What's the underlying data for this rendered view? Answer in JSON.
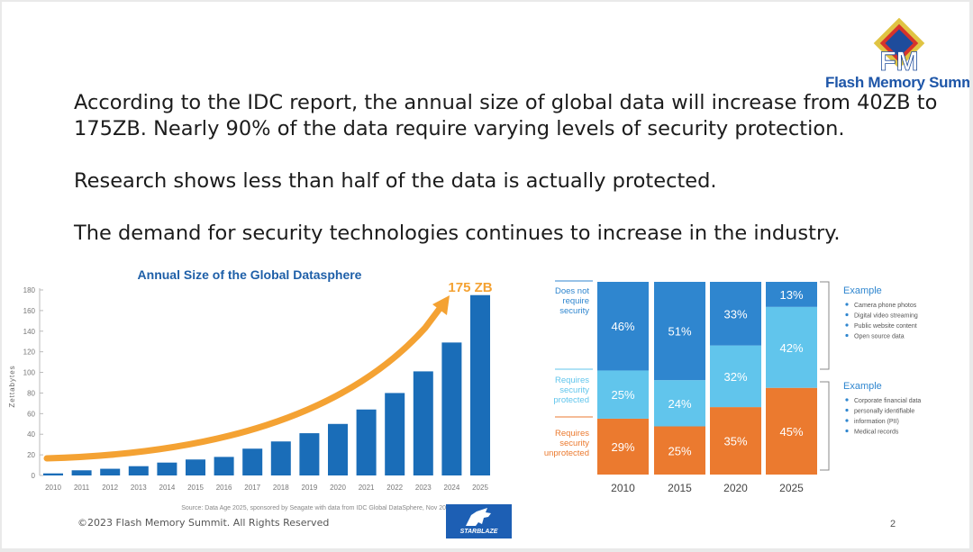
{
  "slide": {
    "paragraphs": [
      "According to the IDC report, the annual size of global data will increase from 40ZB to",
      "175ZB.  Nearly 90% of the data require varying levels of security protection.",
      "Research shows less than half of the data is actually protected.",
      "The demand for security technologies continues to increase in the industry."
    ],
    "footer": "©2023 Flash Memory Summit. All Rights Reserved",
    "page_number": "2",
    "logo_text": "Flash Memory Summit",
    "logo_mark": "FM",
    "sponsor_logo": "STARBLAZE"
  },
  "colors": {
    "bar_blue": "#1a6db8",
    "arrow_orange": "#f4a233",
    "title_blue": "#1e5fa8",
    "blue_dark": "#2f86cf",
    "blue_light": "#61c5ec",
    "orange": "#eb7a2f"
  },
  "chart_data": [
    {
      "type": "bar",
      "title": "Annual Size of the Global Datasphere",
      "ylabel": "Zettabytes",
      "xlabel": "",
      "ylim": [
        0,
        180
      ],
      "yticks": [
        "0",
        "20",
        "40",
        "60",
        "80",
        "100",
        "120",
        "140",
        "160",
        "180"
      ],
      "categories": [
        "2010",
        "2011",
        "2012",
        "2013",
        "2014",
        "2015",
        "2016",
        "2017",
        "2018",
        "2019",
        "2020",
        "2021",
        "2022",
        "2023",
        "2024",
        "2025"
      ],
      "values": [
        2,
        5,
        6.5,
        9,
        12.5,
        15.5,
        18,
        26,
        33,
        41,
        50,
        64,
        80,
        101,
        129,
        175
      ],
      "annotation": "175 ZB",
      "source": "Source: Data Age 2025, sponsored by Seagate with data from IDC Global DataSphere, Nov 2018"
    },
    {
      "type": "bar",
      "stacked": true,
      "percent": true,
      "categories": [
        "2010",
        "2015",
        "2020",
        "2025"
      ],
      "series": [
        {
          "name": "Requires security unprotected",
          "values": [
            29,
            25,
            35,
            45
          ]
        },
        {
          "name": "Requires security protected",
          "values": [
            25,
            24,
            32,
            42
          ]
        },
        {
          "name": "Does not require security",
          "values": [
            46,
            51,
            33,
            13
          ]
        }
      ],
      "labels": {
        "does_not_require": [
          "Does not",
          "require",
          "security"
        ],
        "protected": [
          "Requires",
          "security",
          "protected"
        ],
        "unprotected": [
          "Requires",
          "security",
          "unprotected"
        ]
      },
      "examples": [
        {
          "title": "Example",
          "items": [
            "Camera phone photos",
            "Digital video streaming",
            "Public website content",
            "Open source data"
          ]
        },
        {
          "title": "Example",
          "items": [
            "Corporate financial data",
            "personally identifiable",
            "information (PII)",
            "Medical records"
          ]
        }
      ]
    }
  ]
}
